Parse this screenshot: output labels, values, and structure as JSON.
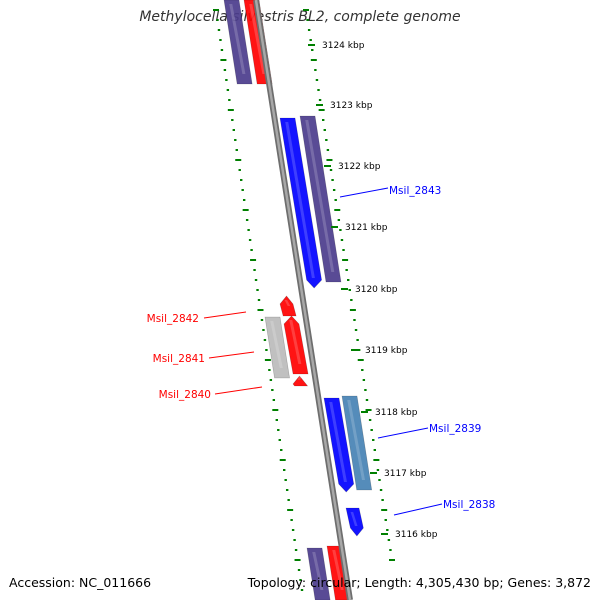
{
  "title": "Methylocella silvestris BL2, complete genome",
  "accession": "Accession: NC_011666",
  "topology": "Topology: circular; Length: 4,305,430 bp; Genes: 3,872",
  "colors": {
    "forward_gene": "#0000ff",
    "reverse_gene": "#ff0000",
    "other_feature": "#4b3c8c",
    "steel_feature": "#4682b4",
    "grey_feature": "#bbbbbb",
    "tick": "#008000",
    "backbone": "#808080"
  },
  "ticks": [
    {
      "label": "3124 kbp"
    },
    {
      "label": "3123 kbp"
    },
    {
      "label": "3122 kbp"
    },
    {
      "label": "3121 kbp"
    },
    {
      "label": "3120 kbp"
    },
    {
      "label": "3119 kbp"
    },
    {
      "label": "3118 kbp"
    },
    {
      "label": "3117 kbp"
    },
    {
      "label": "3116 kbp"
    }
  ],
  "gene_labels": [
    {
      "name": "Msil_2843",
      "strand": "forward"
    },
    {
      "name": "Msil_2842",
      "strand": "reverse"
    },
    {
      "name": "Msil_2841",
      "strand": "reverse"
    },
    {
      "name": "Msil_2840",
      "strand": "reverse"
    },
    {
      "name": "Msil_2839",
      "strand": "forward"
    },
    {
      "name": "Msil_2838",
      "strand": "forward"
    }
  ]
}
